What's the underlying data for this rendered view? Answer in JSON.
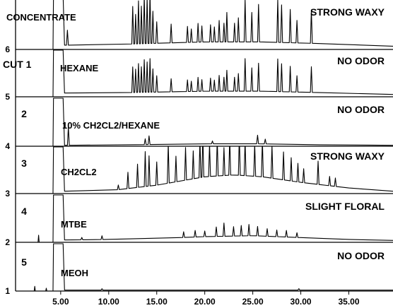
{
  "chart_data": {
    "type": "line",
    "title": "",
    "xlabel": "",
    "ylabel": "",
    "x_range": [
      0.3,
      39.6
    ],
    "x_ticks": [
      "5.00",
      "10.00",
      "15.00",
      "20.00",
      "25.00",
      "30.00",
      "35.00"
    ],
    "x_tick_values": [
      5,
      10,
      15,
      20,
      25,
      30,
      35
    ],
    "grid": false,
    "line_color": "#000000",
    "panels": [
      {
        "y_tick_label": "6",
        "cut_label": "",
        "fraction_label": "CONCENTRATE",
        "odor_label": "STRONG WAXY",
        "baseline": [
          [
            5.8,
            0.08
          ],
          [
            12,
            0.1
          ],
          [
            20,
            0.14
          ],
          [
            26,
            0.14
          ],
          [
            32,
            0.11
          ],
          [
            39.6,
            0.06
          ]
        ],
        "solvent_peak": {
          "start": 4.2,
          "end": 5.4,
          "height": 1.0
        },
        "peaks": [
          [
            5.7,
            0.28
          ],
          [
            12.5,
            0.7
          ],
          [
            12.8,
            0.55
          ],
          [
            13.1,
            0.8
          ],
          [
            13.4,
            0.7
          ],
          [
            13.7,
            0.9
          ],
          [
            14.0,
            0.85
          ],
          [
            14.3,
            0.95
          ],
          [
            14.6,
            0.6
          ],
          [
            15.0,
            0.4
          ],
          [
            16.5,
            0.35
          ],
          [
            18.2,
            0.3
          ],
          [
            18.6,
            0.25
          ],
          [
            19.3,
            0.35
          ],
          [
            19.7,
            0.3
          ],
          [
            20.6,
            0.32
          ],
          [
            21.0,
            0.28
          ],
          [
            21.5,
            0.4
          ],
          [
            22.0,
            0.35
          ],
          [
            22.3,
            0.55
          ],
          [
            23.1,
            0.35
          ],
          [
            23.5,
            0.45
          ],
          [
            24.2,
            0.8
          ],
          [
            24.9,
            0.55
          ],
          [
            25.6,
            0.7
          ],
          [
            27.6,
            0.8
          ],
          [
            28.0,
            0.7
          ],
          [
            28.9,
            0.62
          ],
          [
            29.6,
            0.42
          ],
          [
            31.1,
            0.62
          ]
        ]
      },
      {
        "y_tick_label": "5",
        "cut_label": "CUT 1",
        "fraction_label": "HEXANE",
        "odor_label": "NO ODOR",
        "baseline": [
          [
            5.8,
            0.08
          ],
          [
            12,
            0.09
          ],
          [
            20,
            0.12
          ],
          [
            26,
            0.12
          ],
          [
            32,
            0.09
          ],
          [
            39.6,
            0.05
          ]
        ],
        "solvent_peak": {
          "start": 4.2,
          "end": 5.4,
          "height": 1.0
        },
        "peaks": [
          [
            12.5,
            0.55
          ],
          [
            12.8,
            0.5
          ],
          [
            13.1,
            0.62
          ],
          [
            13.4,
            0.55
          ],
          [
            13.7,
            0.7
          ],
          [
            14.0,
            0.65
          ],
          [
            14.3,
            0.72
          ],
          [
            14.6,
            0.5
          ],
          [
            15.0,
            0.35
          ],
          [
            16.5,
            0.28
          ],
          [
            18.2,
            0.25
          ],
          [
            18.6,
            0.22
          ],
          [
            19.3,
            0.3
          ],
          [
            19.7,
            0.25
          ],
          [
            20.6,
            0.28
          ],
          [
            21.0,
            0.24
          ],
          [
            21.5,
            0.34
          ],
          [
            22.0,
            0.3
          ],
          [
            22.3,
            0.45
          ],
          [
            23.1,
            0.3
          ],
          [
            23.5,
            0.38
          ],
          [
            24.2,
            0.7
          ],
          [
            24.9,
            0.5
          ],
          [
            25.6,
            0.6
          ],
          [
            27.6,
            0.7
          ],
          [
            28.0,
            0.6
          ],
          [
            28.9,
            0.55
          ],
          [
            29.6,
            0.35
          ],
          [
            31.1,
            0.55
          ]
        ]
      },
      {
        "y_tick_label": "4",
        "cut_label": "2",
        "fraction_label": "10% CH2CL2/HEXANE",
        "odor_label": "NO ODOR",
        "baseline": [
          [
            5.8,
            0.02
          ],
          [
            12,
            0.03
          ],
          [
            20,
            0.05
          ],
          [
            26,
            0.05
          ],
          [
            32,
            0.03
          ],
          [
            39.6,
            0.02
          ]
        ],
        "solvent_peak": {
          "start": 4.2,
          "end": 5.4,
          "height": 1.0
        },
        "peaks": [
          [
            5.8,
            0.38
          ],
          [
            13.8,
            0.12
          ],
          [
            14.2,
            0.18
          ],
          [
            20.8,
            0.06
          ],
          [
            25.5,
            0.18
          ],
          [
            26.3,
            0.1
          ]
        ]
      },
      {
        "y_tick_label": "3",
        "cut_label": "3",
        "fraction_label": "CH2CL2",
        "odor_label": "STRONG WAXY",
        "baseline": [
          [
            5.8,
            0.05
          ],
          [
            10,
            0.06
          ],
          [
            15,
            0.18
          ],
          [
            20,
            0.36
          ],
          [
            23,
            0.4
          ],
          [
            26,
            0.36
          ],
          [
            30,
            0.24
          ],
          [
            35,
            0.12
          ],
          [
            39.6,
            0.05
          ]
        ],
        "solvent_peak": {
          "start": 4.2,
          "end": 5.4,
          "height": 1.0
        },
        "peaks": [
          [
            11.0,
            0.1
          ],
          [
            12.0,
            0.35
          ],
          [
            13.0,
            0.5
          ],
          [
            13.8,
            0.75
          ],
          [
            14.2,
            0.65
          ],
          [
            15.0,
            0.5
          ],
          [
            16.2,
            0.85
          ],
          [
            17.0,
            0.55
          ],
          [
            18.0,
            0.7
          ],
          [
            18.8,
            0.6
          ],
          [
            19.5,
            0.8
          ],
          [
            19.8,
            0.9
          ],
          [
            20.5,
            0.7
          ],
          [
            21.3,
            0.8
          ],
          [
            22.0,
            0.6
          ],
          [
            22.6,
            0.8
          ],
          [
            23.6,
            0.85
          ],
          [
            24.2,
            0.75
          ],
          [
            25.2,
            0.7
          ],
          [
            26.0,
            0.8
          ],
          [
            27.0,
            0.7
          ],
          [
            28.2,
            0.6
          ],
          [
            29.0,
            0.5
          ],
          [
            29.7,
            0.4
          ],
          [
            30.3,
            0.3
          ],
          [
            31.8,
            0.5
          ],
          [
            33.0,
            0.2
          ],
          [
            33.6,
            0.18
          ]
        ]
      },
      {
        "y_tick_label": "2",
        "cut_label": "4",
        "fraction_label": "MTBE",
        "odor_label": "SLIGHT FLORAL",
        "baseline": [
          [
            5.8,
            0.05
          ],
          [
            10,
            0.06
          ],
          [
            15,
            0.08
          ],
          [
            20,
            0.12
          ],
          [
            25,
            0.14
          ],
          [
            30,
            0.1
          ],
          [
            35,
            0.06
          ],
          [
            39.6,
            0.04
          ]
        ],
        "solvent_peak": {
          "start": 4.2,
          "end": 5.4,
          "height": 1.0
        },
        "peaks": [
          [
            2.7,
            0.15
          ],
          [
            7.2,
            0.05
          ],
          [
            9.3,
            0.08
          ],
          [
            17.8,
            0.12
          ],
          [
            19.0,
            0.14
          ],
          [
            20.0,
            0.12
          ],
          [
            21.2,
            0.2
          ],
          [
            22.0,
            0.28
          ],
          [
            23.0,
            0.2
          ],
          [
            23.8,
            0.22
          ],
          [
            24.6,
            0.24
          ],
          [
            25.5,
            0.2
          ],
          [
            26.5,
            0.16
          ],
          [
            27.5,
            0.14
          ],
          [
            28.5,
            0.14
          ],
          [
            29.6,
            0.1
          ]
        ]
      },
      {
        "y_tick_label": "1",
        "cut_label": "5",
        "fraction_label": "MEOH",
        "odor_label": "NO ODOR",
        "baseline": [
          [
            5.8,
            0.02
          ],
          [
            10,
            0.02
          ],
          [
            20,
            0.03
          ],
          [
            30,
            0.02
          ],
          [
            39.6,
            0.02
          ]
        ],
        "solvent_peak": {
          "start": 4.2,
          "end": 5.4,
          "height": 1.0
        },
        "peaks": [
          [
            2.3,
            0.1
          ],
          [
            3.5,
            0.06
          ],
          [
            9.3,
            0.03
          ],
          [
            29.8,
            0.03
          ]
        ]
      }
    ]
  }
}
